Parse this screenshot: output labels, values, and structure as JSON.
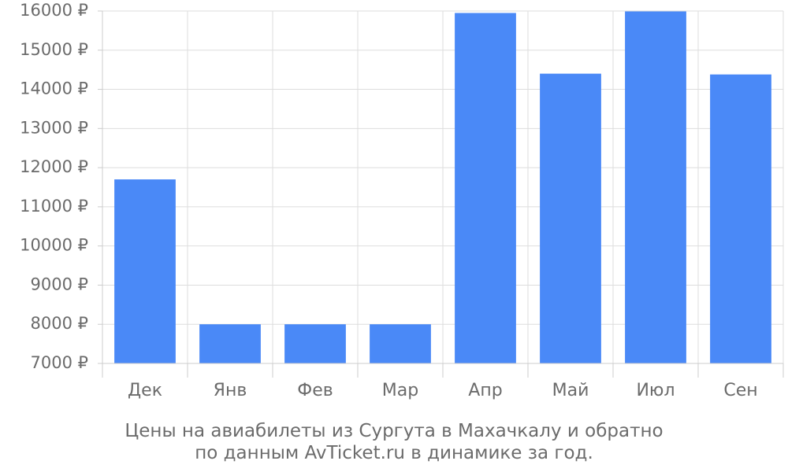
{
  "chart_data": {
    "type": "bar",
    "categories": [
      "Дек",
      "Янв",
      "Фев",
      "Мар",
      "Апр",
      "Май",
      "Июл",
      "Сен"
    ],
    "values": [
      11700,
      8000,
      8000,
      8000,
      15950,
      14400,
      15990,
      14380
    ],
    "ylim": [
      7000,
      16000
    ],
    "yticks": [
      7000,
      8000,
      9000,
      10000,
      11000,
      12000,
      13000,
      14000,
      15000,
      16000
    ],
    "ytick_suffix": " ₽",
    "grid": true,
    "bar_color": "#4a89f7",
    "caption_line1": "Цены на авиабилеты из Сургута в Махачкалу и обратно",
    "caption_line2": "по данным AvTicket.ru в динамике за год."
  }
}
